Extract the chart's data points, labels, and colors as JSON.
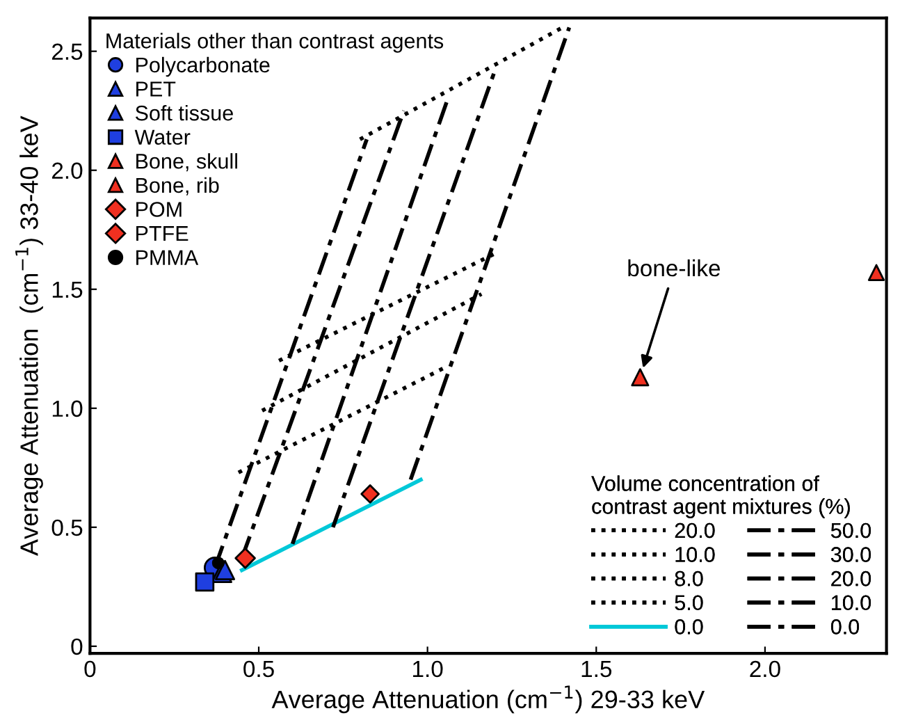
{
  "chart_data": {
    "type": "line",
    "xlabel": "Average Attenuation (cm$^{−1}$) 29-33 keV",
    "ylabel": "Average Attenuation  (cm$^{−1}$) 33-40 keV",
    "legend_title": [
      "Materials other than contrast agents",
      "Volume concentration of\ncontrast agent mixtures (%)"
    ],
    "legend": [
      "top left",
      "bottom right"
    ],
    "xlim": [
      0,
      2.36
    ],
    "ylim": [
      -0.03,
      2.64
    ],
    "xticks": [
      0,
      {
        "value": 0.5,
        "label": "0.5"
      },
      {
        "value": 1.0,
        "label": "1.0"
      },
      {
        "value": 1.5,
        "label": "1.5"
      },
      {
        "value": 2.0,
        "label": "2.0"
      }
    ],
    "yticks": [
      0,
      {
        "value": 0.5,
        "label": "0.5"
      },
      {
        "value": 1.0,
        "label": "1.0"
      },
      {
        "value": 1.5,
        "label": "1.5"
      },
      {
        "value": 2.0,
        "label": "2.0"
      },
      {
        "value": 2.5,
        "label": "2.5"
      }
    ],
    "grid": false,
    "annotations": [
      {
        "text": "bone-like",
        "x": 1.63,
        "y": 1.13
      }
    ],
    "series": [
      {
        "type": "scatter",
        "name": "Polycarbonate",
        "color": "#1f3fe0",
        "marker": "circle",
        "x": [
          0.37
        ],
        "values": [
          0.33
        ]
      },
      {
        "type": "scatter",
        "name": "PET",
        "color": "#1f3fe0",
        "marker": "triangle",
        "x": [
          0.39
        ],
        "values": [
          0.31
        ]
      },
      {
        "type": "scatter",
        "name": "Soft tissue",
        "color": "#1f3fe0",
        "marker": "triangle",
        "x": [
          0.4
        ],
        "values": [
          0.32
        ]
      },
      {
        "type": "scatter",
        "name": "Water",
        "color": "#1f3fe0",
        "marker": "square",
        "x": [
          0.34
        ],
        "values": [
          0.27
        ]
      },
      {
        "type": "scatter",
        "name": "Bone, skull",
        "color": "#f03020",
        "marker": "triangle",
        "x": [
          1.63
        ],
        "values": [
          1.13
        ]
      },
      {
        "type": "scatter",
        "name": "Bone, rib",
        "color": "#f03020",
        "marker": "triangle",
        "x": [
          2.33
        ],
        "values": [
          1.57
        ]
      },
      {
        "type": "scatter",
        "name": "POM",
        "color": "#f03020",
        "marker": "diamond",
        "x": [
          0.46
        ],
        "values": [
          0.37
        ]
      },
      {
        "type": "scatter",
        "name": "PTFE",
        "color": "#f03020",
        "marker": "diamond",
        "x": [
          0.83
        ],
        "values": [
          0.64
        ]
      },
      {
        "type": "scatter",
        "name": "PMMA",
        "color": "#000000",
        "marker": "circle",
        "x": [
          0.38
        ],
        "values": [
          0.35
        ]
      },
      {
        "name": "20.0",
        "color": "#000000",
        "line_style": "dotted",
        "x": [
          0.8,
          1.4
        ],
        "values": [
          2.13,
          2.6
        ]
      },
      {
        "name": "10.0",
        "color": "#000000",
        "line_style": "dotted",
        "x": [
          0.56,
          1.2
        ],
        "values": [
          1.2,
          1.65
        ]
      },
      {
        "name": "8.0",
        "color": "#000000",
        "line_style": "dotted",
        "x": [
          0.51,
          1.16
        ],
        "values": [
          0.99,
          1.48
        ]
      },
      {
        "name": "5.0",
        "color": "#000000",
        "line_style": "dotted",
        "x": [
          0.44,
          1.05
        ],
        "values": [
          0.73,
          1.17
        ]
      },
      {
        "name": "0.0",
        "color": "#00c8d8",
        "line_style": "solid",
        "x": [
          0.45,
          0.98
        ],
        "values": [
          0.32,
          0.7
        ]
      },
      {
        "name": "50.0",
        "color": "#000000",
        "line_style": "dashdot",
        "x": [
          0.95,
          1.42
        ],
        "values": [
          0.7,
          2.6
        ]
      },
      {
        "name": "30.0",
        "color": "#000000",
        "line_style": "dashdot",
        "x": [
          0.72,
          1.2
        ],
        "values": [
          0.5,
          2.42
        ]
      },
      {
        "name": "20.0",
        "color": "#000000",
        "line_style": "dashdot",
        "x": [
          0.6,
          1.06
        ],
        "values": [
          0.43,
          2.3
        ]
      },
      {
        "name": "10.0",
        "color": "#000000",
        "line_style": "dashdot",
        "x": [
          0.45,
          0.93
        ],
        "values": [
          0.37,
          2.25
        ]
      },
      {
        "name": "0.0",
        "color": "#000000",
        "line_style": "dashdot",
        "x": [
          0.37,
          0.82
        ],
        "values": [
          0.33,
          2.13
        ]
      }
    ]
  }
}
